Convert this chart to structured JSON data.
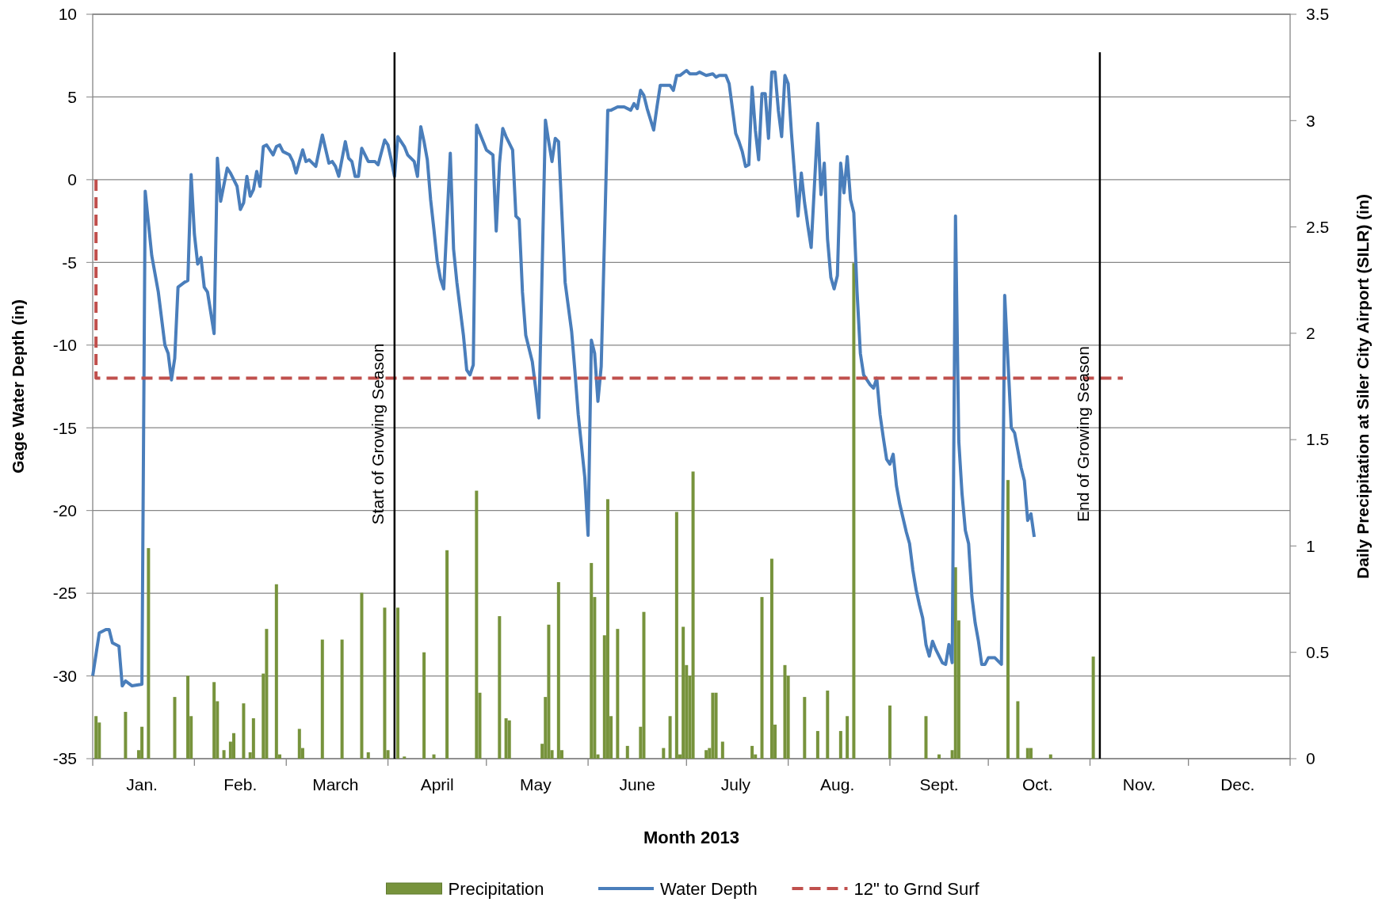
{
  "chart_data": {
    "type": "line",
    "xlabel": "Month 2013",
    "ylabel": "Gage Water Depth (in)",
    "y2label": "Daily Precipitation at Siler City Airport (SILR) (in)",
    "xlim": [
      "2013-01-01",
      "2014-01-01"
    ],
    "xticks": [
      {
        "value": "2013-01-01",
        "label": null
      },
      {
        "value": "2013-02-01",
        "label": null
      },
      {
        "value": "2013-03-01",
        "label": null
      },
      {
        "value": "2013-04-01",
        "label": null
      },
      {
        "value": "2013-05-01",
        "label": null
      },
      {
        "value": "2013-06-01",
        "label": null
      },
      {
        "value": "2013-07-01",
        "label": null
      },
      {
        "value": "2013-08-01",
        "label": null
      },
      {
        "value": "2013-09-01",
        "label": null
      },
      {
        "value": "2013-10-01",
        "label": null
      },
      {
        "value": "2013-11-01",
        "label": null
      },
      {
        "value": "2013-12-01",
        "label": null
      },
      {
        "value": "2014-01-01",
        "label": null
      },
      {
        "value": "2013-01-16",
        "label": "Jan."
      },
      {
        "value": "2013-02-15",
        "label": "Feb."
      },
      {
        "value": "2013-03-16",
        "label": "March"
      },
      {
        "value": "2013-04-16",
        "label": "April"
      },
      {
        "value": "2013-05-16",
        "label": "May"
      },
      {
        "value": "2013-06-16",
        "label": "June"
      },
      {
        "value": "2013-07-16",
        "label": "July"
      },
      {
        "value": "2013-08-16",
        "label": "Aug."
      },
      {
        "value": "2013-09-16",
        "label": "Sept."
      },
      {
        "value": "2013-10-16",
        "label": "Oct."
      },
      {
        "value": "2013-11-16",
        "label": "Nov."
      },
      {
        "value": "2013-12-16",
        "label": "Dec."
      }
    ],
    "ylim": [
      -35,
      10
    ],
    "yticks": [
      -35,
      -30,
      -25,
      -20,
      -15,
      -10,
      -5,
      0,
      5,
      10
    ],
    "y2lim": [
      0,
      3.5
    ],
    "y2ticks": [
      0,
      0.5,
      1,
      1.5,
      2,
      2.5,
      3,
      3.5
    ],
    "grid": "y",
    "legend": "bottom",
    "ref_lines": [
      {
        "axis": "x",
        "value": "2013-04-03",
        "label": "Start of Growing Season",
        "color": "#000000"
      },
      {
        "axis": "x",
        "value": "2013-11-04",
        "label": "End of Growing Season",
        "color": "#000000"
      }
    ],
    "series": [
      {
        "name": "Precipitation",
        "type": "bar",
        "axis": "y2",
        "color": "#77933c",
        "x": [
          "2013-01-02",
          "2013-01-03",
          "2013-01-11",
          "2013-01-15",
          "2013-01-16",
          "2013-01-18",
          "2013-01-26",
          "2013-01-30",
          "2013-01-31",
          "2013-02-07",
          "2013-02-08",
          "2013-02-10",
          "2013-02-12",
          "2013-02-13",
          "2013-02-16",
          "2013-02-18",
          "2013-02-19",
          "2013-02-22",
          "2013-02-23",
          "2013-02-26",
          "2013-02-27",
          "2013-03-05",
          "2013-03-06",
          "2013-03-12",
          "2013-03-18",
          "2013-03-24",
          "2013-03-26",
          "2013-03-31",
          "2013-04-01",
          "2013-04-04",
          "2013-04-06",
          "2013-04-12",
          "2013-04-15",
          "2013-04-19",
          "2013-04-28",
          "2013-04-29",
          "2013-05-05",
          "2013-05-07",
          "2013-05-08",
          "2013-05-18",
          "2013-05-19",
          "2013-05-20",
          "2013-05-21",
          "2013-05-23",
          "2013-05-24",
          "2013-06-02",
          "2013-06-03",
          "2013-06-04",
          "2013-06-06",
          "2013-06-07",
          "2013-06-08",
          "2013-06-10",
          "2013-06-13",
          "2013-06-17",
          "2013-06-18",
          "2013-06-24",
          "2013-06-26",
          "2013-06-28",
          "2013-06-29",
          "2013-06-30",
          "2013-07-01",
          "2013-07-02",
          "2013-07-03",
          "2013-07-07",
          "2013-07-08",
          "2013-07-09",
          "2013-07-10",
          "2013-07-12",
          "2013-07-21",
          "2013-07-22",
          "2013-07-24",
          "2013-07-27",
          "2013-07-28",
          "2013-07-31",
          "2013-08-01",
          "2013-08-06",
          "2013-08-10",
          "2013-08-13",
          "2013-08-17",
          "2013-08-19",
          "2013-08-21",
          "2013-09-01",
          "2013-09-12",
          "2013-09-16",
          "2013-09-20",
          "2013-09-21",
          "2013-09-22",
          "2013-10-07",
          "2013-10-10",
          "2013-10-13",
          "2013-10-14",
          "2013-10-20",
          "2013-11-02"
        ],
        "values": [
          0.2,
          0.17,
          0.22,
          0.04,
          0.15,
          0.99,
          0.29,
          0.39,
          0.2,
          0.36,
          0.27,
          0.04,
          0.08,
          0.12,
          0.26,
          0.03,
          0.19,
          0.4,
          0.61,
          0.82,
          0.02,
          0.14,
          0.05,
          0.56,
          0.56,
          0.78,
          0.03,
          0.71,
          0.04,
          0.71,
          0.01,
          0.5,
          0.02,
          0.98,
          1.26,
          0.31,
          0.67,
          0.19,
          0.18,
          0.07,
          0.29,
          0.63,
          0.04,
          0.83,
          0.04,
          0.92,
          0.76,
          0.02,
          0.58,
          1.22,
          0.2,
          0.61,
          0.06,
          0.15,
          0.69,
          0.05,
          0.2,
          1.16,
          0.02,
          0.62,
          0.44,
          0.39,
          1.35,
          0.04,
          0.05,
          0.31,
          0.31,
          0.08,
          0.06,
          0.02,
          0.76,
          0.94,
          0.16,
          0.44,
          0.39,
          0.29,
          0.13,
          0.32,
          0.13,
          0.2,
          2.33,
          0.25,
          0.2,
          0.02,
          0.04,
          0.9,
          0.65,
          1.31,
          0.27,
          0.05,
          0.05,
          0.02,
          0.48
        ]
      },
      {
        "name": "Water Depth",
        "color": "#4a7ebb",
        "line_style": "solid",
        "x": [
          "2013-01-01",
          "2013-01-03",
          "2013-01-05",
          "2013-01-06",
          "2013-01-07",
          "2013-01-09",
          "2013-01-10",
          "2013-01-11",
          "2013-01-13",
          "2013-01-16",
          "2013-01-17",
          "2013-01-19",
          "2013-01-21",
          "2013-01-23",
          "2013-01-24",
          "2013-01-25",
          "2013-01-26",
          "2013-01-27",
          "2013-01-29",
          "2013-01-30",
          "2013-01-31",
          "2013-02-01",
          "2013-02-02",
          "2013-02-03",
          "2013-02-04",
          "2013-02-05",
          "2013-02-07",
          "2013-02-08",
          "2013-02-09",
          "2013-02-11",
          "2013-02-12",
          "2013-02-14",
          "2013-02-15",
          "2013-02-16",
          "2013-02-17",
          "2013-02-18",
          "2013-02-19",
          "2013-02-20",
          "2013-02-21",
          "2013-02-22",
          "2013-02-23",
          "2013-02-25",
          "2013-02-26",
          "2013-02-27",
          "2013-02-28",
          "2013-03-02",
          "2013-03-03",
          "2013-03-04",
          "2013-03-06",
          "2013-03-07",
          "2013-03-08",
          "2013-03-10",
          "2013-03-12",
          "2013-03-14",
          "2013-03-15",
          "2013-03-16",
          "2013-03-17",
          "2013-03-19",
          "2013-03-20",
          "2013-03-21",
          "2013-03-22",
          "2013-03-23",
          "2013-03-24",
          "2013-03-26",
          "2013-03-27",
          "2013-03-28",
          "2013-03-29",
          "2013-03-31",
          "2013-04-01",
          "2013-04-02",
          "2013-04-03",
          "2013-04-04",
          "2013-04-06",
          "2013-04-07",
          "2013-04-09",
          "2013-04-10",
          "2013-04-11",
          "2013-04-12",
          "2013-04-13",
          "2013-04-14",
          "2013-04-15",
          "2013-04-16",
          "2013-04-17",
          "2013-04-18",
          "2013-04-20",
          "2013-04-21",
          "2013-04-22",
          "2013-04-24",
          "2013-04-25",
          "2013-04-26",
          "2013-04-27",
          "2013-04-28",
          "2013-04-30",
          "2013-05-01",
          "2013-05-03",
          "2013-05-04",
          "2013-05-05",
          "2013-05-06",
          "2013-05-07",
          "2013-05-09",
          "2013-05-10",
          "2013-05-11",
          "2013-05-12",
          "2013-05-13",
          "2013-05-15",
          "2013-05-16",
          "2013-05-17",
          "2013-05-19",
          "2013-05-20",
          "2013-05-21",
          "2013-05-22",
          "2013-05-23",
          "2013-05-24",
          "2013-05-25",
          "2013-05-27",
          "2013-05-28",
          "2013-05-29",
          "2013-05-31",
          "2013-06-01",
          "2013-06-02",
          "2013-06-03",
          "2013-06-04",
          "2013-06-05",
          "2013-06-07",
          "2013-06-08",
          "2013-06-10",
          "2013-06-12",
          "2013-06-14",
          "2013-06-15",
          "2013-06-16",
          "2013-06-17",
          "2013-06-18",
          "2013-06-19",
          "2013-06-21",
          "2013-06-22",
          "2013-06-23",
          "2013-06-24",
          "2013-06-26",
          "2013-06-27",
          "2013-06-28",
          "2013-06-29",
          "2013-07-01",
          "2013-07-02",
          "2013-07-04",
          "2013-07-05",
          "2013-07-07",
          "2013-07-09",
          "2013-07-10",
          "2013-07-11",
          "2013-07-13",
          "2013-07-14",
          "2013-07-16",
          "2013-07-17",
          "2013-07-18",
          "2013-07-19",
          "2013-07-20",
          "2013-07-21",
          "2013-07-22",
          "2013-07-23",
          "2013-07-24",
          "2013-07-25",
          "2013-07-26",
          "2013-07-27",
          "2013-07-28",
          "2013-07-29",
          "2013-07-30",
          "2013-07-31",
          "2013-08-01",
          "2013-08-02",
          "2013-08-03",
          "2013-08-04",
          "2013-08-05",
          "2013-08-06",
          "2013-08-07",
          "2013-08-08",
          "2013-08-10",
          "2013-08-11",
          "2013-08-12",
          "2013-08-13",
          "2013-08-14",
          "2013-08-15",
          "2013-08-16",
          "2013-08-17",
          "2013-08-18",
          "2013-08-19",
          "2013-08-20",
          "2013-08-21",
          "2013-08-22",
          "2013-08-23",
          "2013-08-24",
          "2013-08-26",
          "2013-08-27",
          "2013-08-28",
          "2013-08-29",
          "2013-08-30",
          "2013-08-31",
          "2013-09-01",
          "2013-09-02",
          "2013-09-03",
          "2013-09-04",
          "2013-09-06",
          "2013-09-07",
          "2013-09-08",
          "2013-09-09",
          "2013-09-10",
          "2013-09-11",
          "2013-09-12",
          "2013-09-13",
          "2013-09-14",
          "2013-09-15",
          "2013-09-17",
          "2013-09-18",
          "2013-09-19",
          "2013-09-20",
          "2013-09-21",
          "2013-09-22",
          "2013-09-23",
          "2013-09-24",
          "2013-09-25",
          "2013-09-26",
          "2013-09-27",
          "2013-09-28",
          "2013-09-29",
          "2013-09-30",
          "2013-10-01",
          "2013-10-03",
          "2013-10-05",
          "2013-10-06",
          "2013-10-08",
          "2013-10-09",
          "2013-10-11",
          "2013-10-12",
          "2013-10-13",
          "2013-10-14",
          "2013-10-15"
        ],
        "values": [
          -30,
          -27.4,
          -27.2,
          -27.2,
          -28,
          -28.2,
          -30.6,
          -30.3,
          -30.6,
          -30.5,
          -0.7,
          -4.6,
          -6.8,
          -10,
          -10.5,
          -12.1,
          -10.8,
          -6.5,
          -6.2,
          -6.1,
          0.3,
          -3.3,
          -5.1,
          -4.7,
          -6.5,
          -6.8,
          -9.3,
          1.3,
          -1.3,
          0.7,
          0.4,
          -0.4,
          -1.8,
          -1.4,
          0.2,
          -1,
          -0.6,
          0.5,
          -0.4,
          2,
          2.1,
          1.5,
          2,
          2.1,
          1.7,
          1.5,
          1.1,
          0.4,
          1.8,
          1.1,
          1.2,
          0.8,
          2.7,
          1,
          1.1,
          0.8,
          0.2,
          2.3,
          1.3,
          1.1,
          0.2,
          0.2,
          1.9,
          1.1,
          1.1,
          1.1,
          0.9,
          2.4,
          2.1,
          1.2,
          0.2,
          2.6,
          2,
          1.5,
          1.1,
          0.2,
          3.2,
          2.3,
          1.2,
          -1.2,
          -3,
          -4.9,
          -6,
          -6.6,
          1.6,
          -4.2,
          -6.2,
          -9.4,
          -11.5,
          -11.8,
          -11.2,
          3.3,
          2.3,
          1.8,
          1.5,
          -3.1,
          1,
          3.1,
          2.6,
          1.8,
          -2.2,
          -2.4,
          -6.8,
          -9.4,
          -11,
          -12.6,
          -14.4,
          3.6,
          2.3,
          1.1,
          2.5,
          2.3,
          -2,
          -6.2,
          -9.2,
          -11.6,
          -14.2,
          -18,
          -21.5,
          -9.7,
          -10.5,
          -13.4,
          -11.3,
          4.2,
          4.2,
          4.4,
          4.4,
          4.2,
          4.6,
          4.3,
          5.4,
          5.1,
          4.3,
          3,
          4.4,
          5.7,
          5.7,
          5.7,
          5.4,
          6.3,
          6.3,
          6.6,
          6.4,
          6.4,
          6.5,
          6.3,
          6.4,
          6.2,
          6.3,
          6.3,
          5.8,
          2.8,
          2.3,
          1.7,
          0.8,
          0.9,
          5.6,
          3,
          1.2,
          5.2,
          5.2,
          2.5,
          6.5,
          6.5,
          4.2,
          2.6,
          6.3,
          5.8,
          2.8,
          0.2,
          -2.2,
          0.4,
          -1.4,
          -2.8,
          -4.1,
          3.4,
          -0.9,
          1,
          -3.6,
          -5.9,
          -6.6,
          -5.8,
          1,
          -0.8,
          1.4,
          -1.2,
          -2,
          -6.8,
          -10.5,
          -11.8,
          -12.4,
          -12.6,
          -12,
          -14.2,
          -15.6,
          -16.9,
          -17.2,
          -16.6,
          -18.5,
          -19.6,
          -21.3,
          -22,
          -23.6,
          -24.8,
          -25.7,
          -26.5,
          -28.1,
          -28.8,
          -27.9,
          -28.4,
          -29.2,
          -29.3,
          -28.1,
          -29.2,
          -2.2,
          -15.8,
          -19,
          -21.2,
          -22,
          -25.2,
          -26.8,
          -27.9,
          -29.3,
          -29.3,
          -28.9,
          -28.9,
          -29.3,
          -7,
          -15,
          -15.3,
          -17.4,
          -18.2,
          -20.6,
          -20.2,
          -21.6
        ]
      },
      {
        "name": "12\" to Grnd Surf",
        "color": "#c0504d",
        "line_style": "dashed",
        "x": [
          "2013-01-02",
          "2013-01-02",
          "2013-11-11"
        ],
        "values": [
          0,
          -12,
          -12
        ]
      }
    ]
  }
}
